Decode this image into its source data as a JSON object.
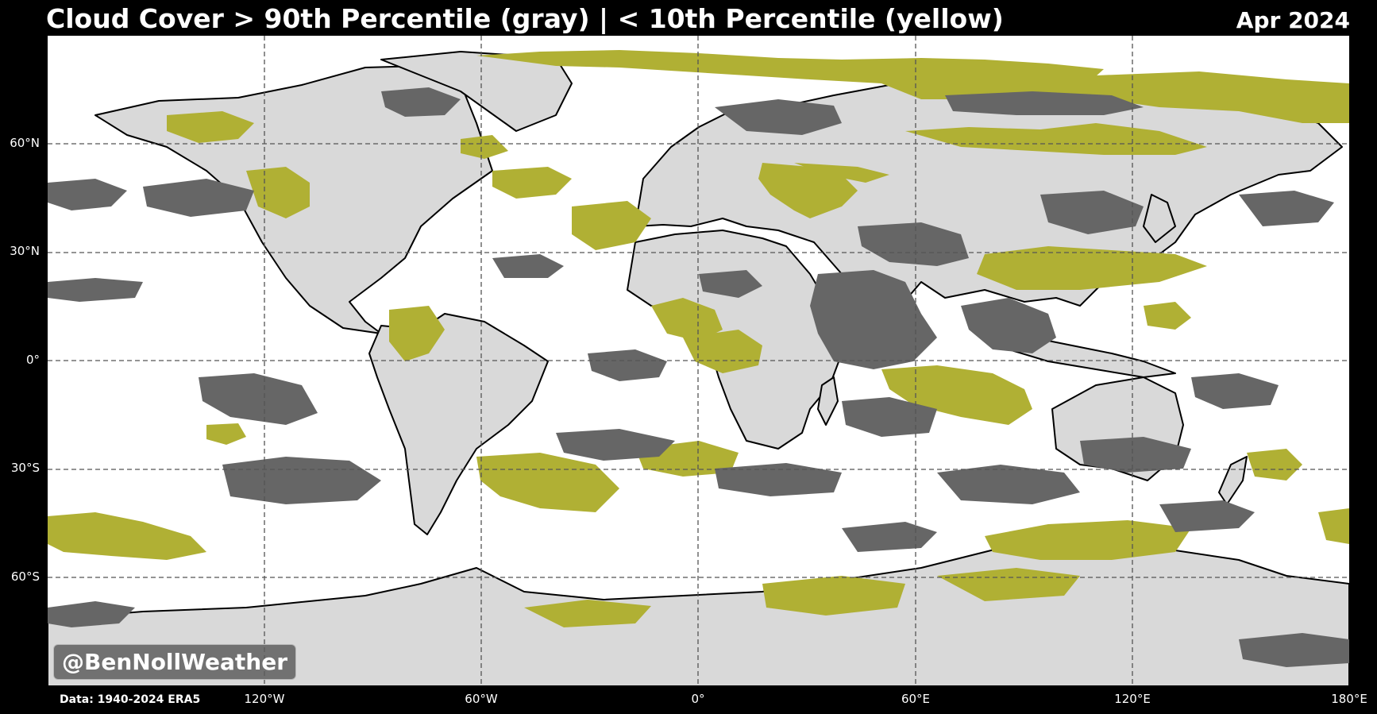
{
  "title": "Cloud Cover > 90th Percentile (gray) | < 10th Percentile (yellow)",
  "date": "Apr 2024",
  "credit": "@BenNollWeather",
  "source": "Data: 1940-2024 ERA5",
  "colors": {
    "ocean": "#ffffff",
    "land": "#d9d9d9",
    "above_90th": "#666666",
    "below_10th": "#b0b034",
    "coastline": "#000000",
    "gridline": "#555555",
    "lakes": "#9aa8b8"
  },
  "lat_labels": [
    "60°N",
    "30°N",
    "0°",
    "30°S",
    "60°S"
  ],
  "lon_labels": [
    "120°W",
    "60°W",
    "0°",
    "60°E",
    "120°E",
    "180°E"
  ],
  "gridlines": "dashed"
}
